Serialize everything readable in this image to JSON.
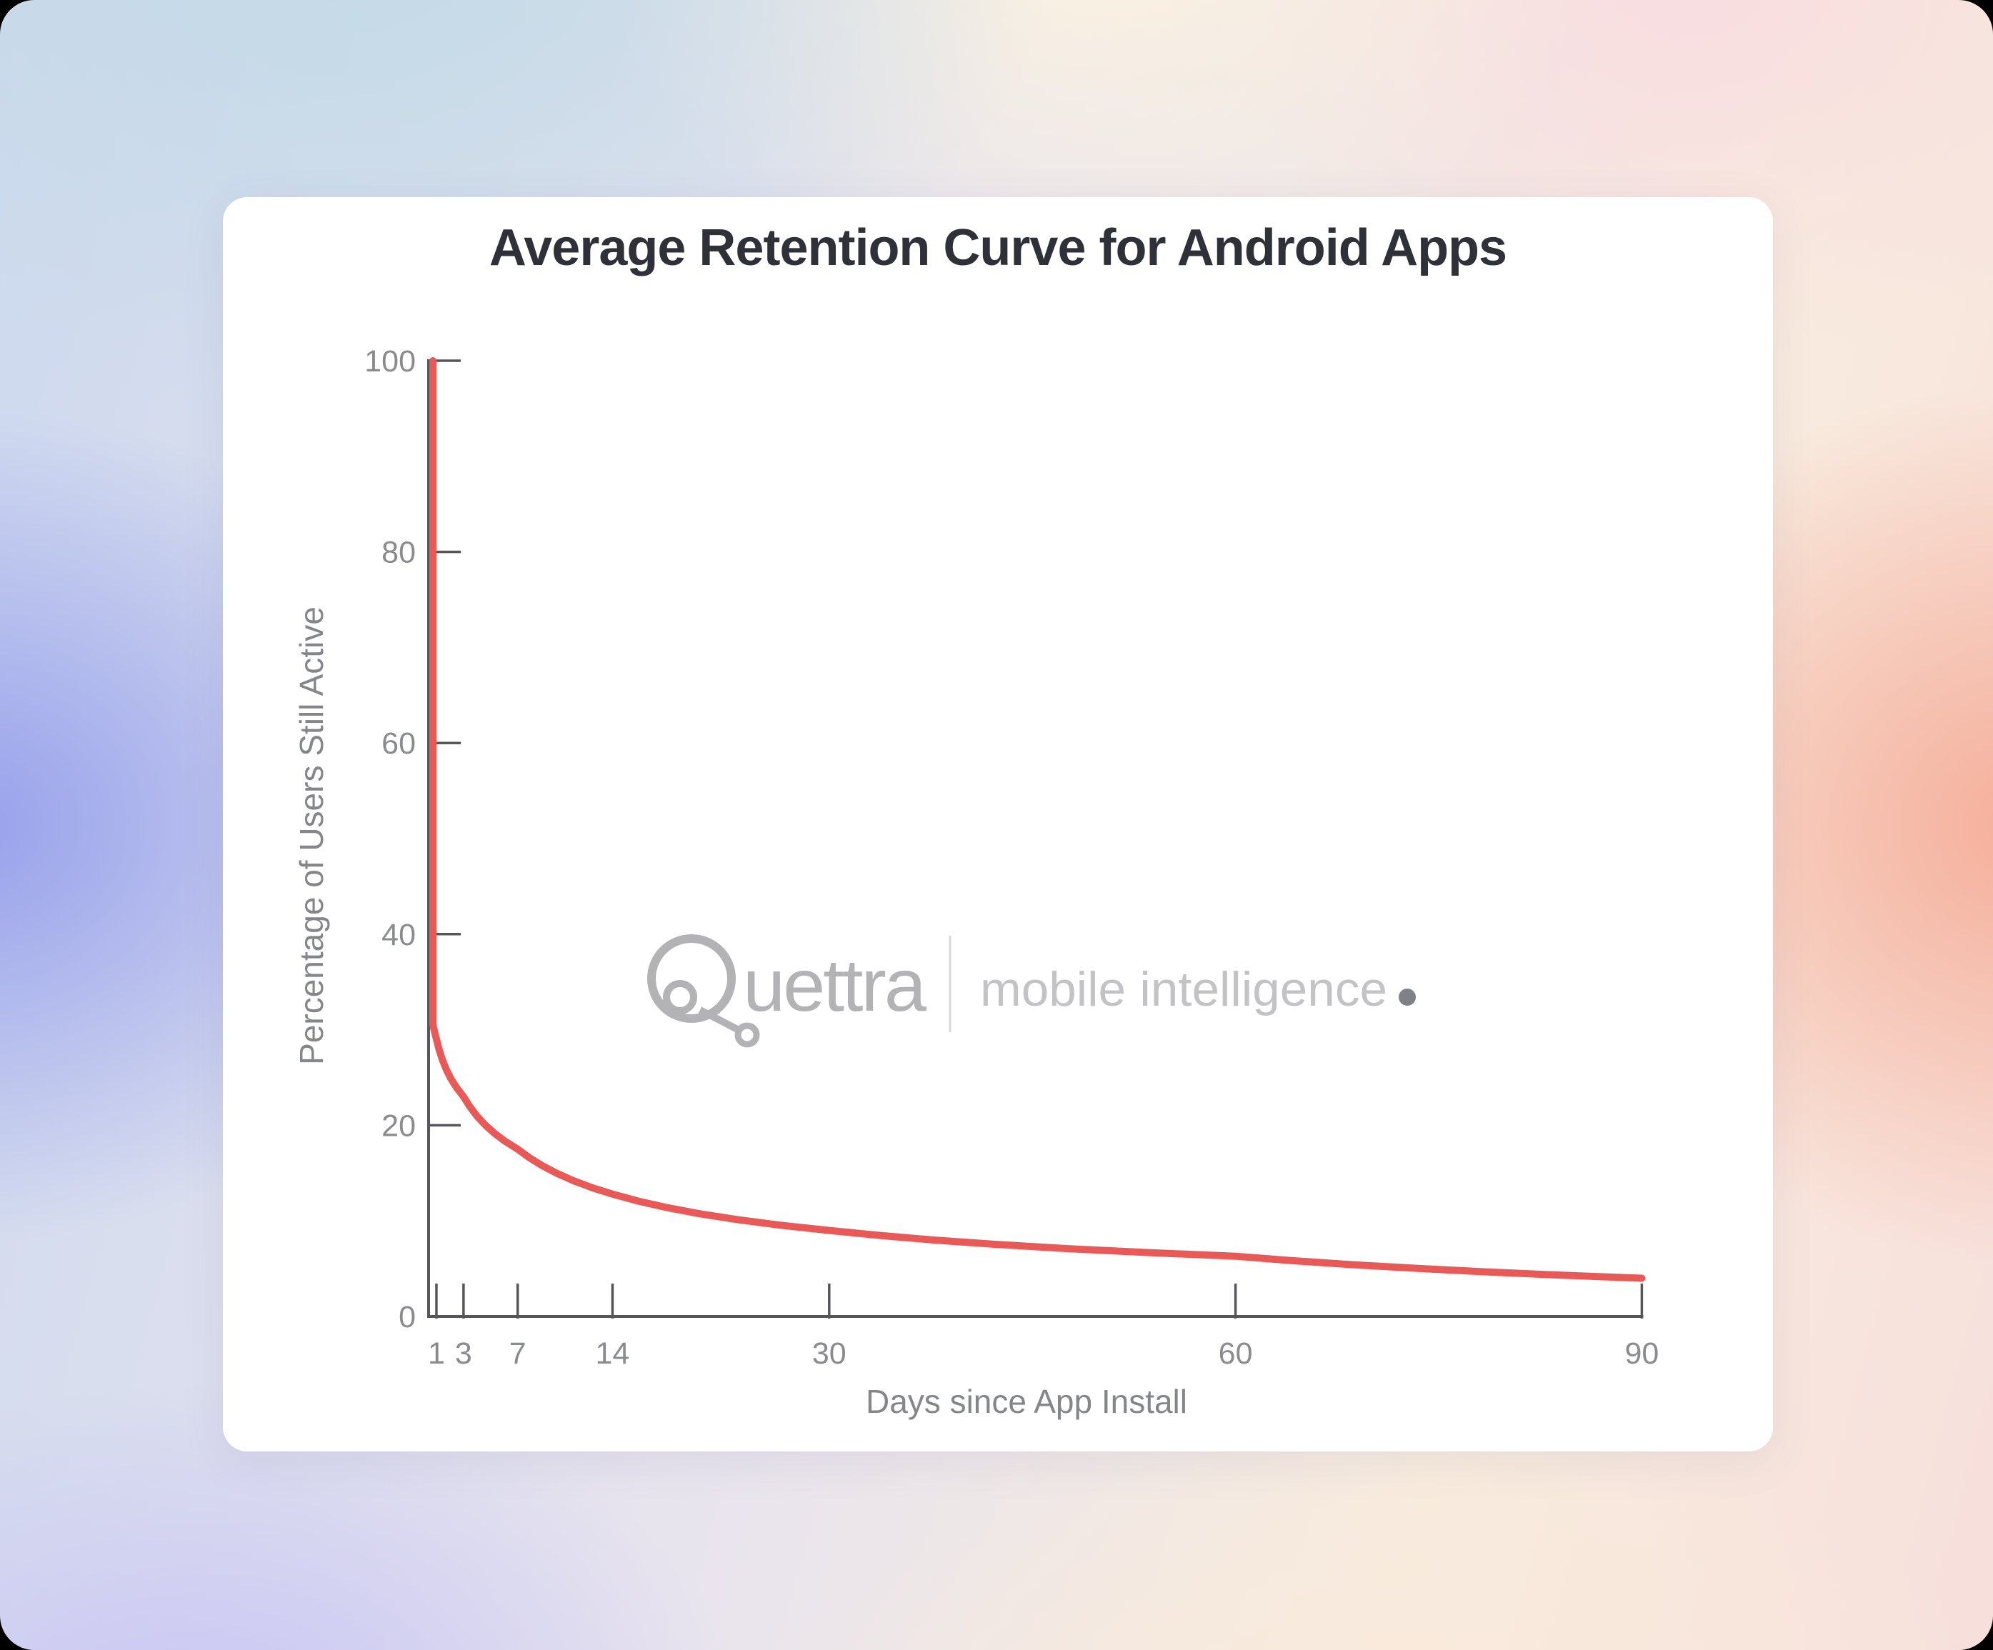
{
  "page": {
    "background_accent_colors": {
      "left_periwinkle": "#97a0ec",
      "right_salmon": "#f6ae99",
      "top_left_blue": "#c2dae6",
      "top_cream": "#fdf3df",
      "top_right_pink": "#f9dce0",
      "bottom_lavender": "#c9c5f4",
      "bottom_peach": "#f9e9da"
    },
    "card_color": "#ffffff"
  },
  "chart": {
    "title": "Average Retention Curve for Android Apps",
    "y_axis_label": "Percentage of Users Still Active",
    "x_axis_label": "Days since App Install",
    "colors": {
      "curve": "#e85a58",
      "axis": "#54565b",
      "tick_label": "#8a8b8f",
      "title": "#2e3238",
      "axis_title": "#85868a"
    }
  },
  "chart_data": {
    "type": "line",
    "title": "Average Retention Curve for Android Apps",
    "xlabel": "Days since App Install",
    "ylabel": "Percentage of Users Still Active",
    "x": [
      0,
      1,
      3,
      7,
      14,
      30,
      60,
      90
    ],
    "values": [
      100,
      29,
      23,
      17.5,
      12.8,
      9,
      6.3,
      4
    ],
    "x_ticks": [
      1,
      3,
      7,
      14,
      30,
      60,
      90
    ],
    "y_ticks": [
      0,
      20,
      40,
      60,
      80,
      100
    ],
    "xlim": [
      0,
      90
    ],
    "ylim": [
      0,
      100
    ],
    "grid": false,
    "legend": null,
    "line_color": "#e85a58"
  },
  "watermark": {
    "brand_name": "Quettra",
    "brand_text": "uettra",
    "tagline": "mobile intelligence",
    "period": "."
  }
}
